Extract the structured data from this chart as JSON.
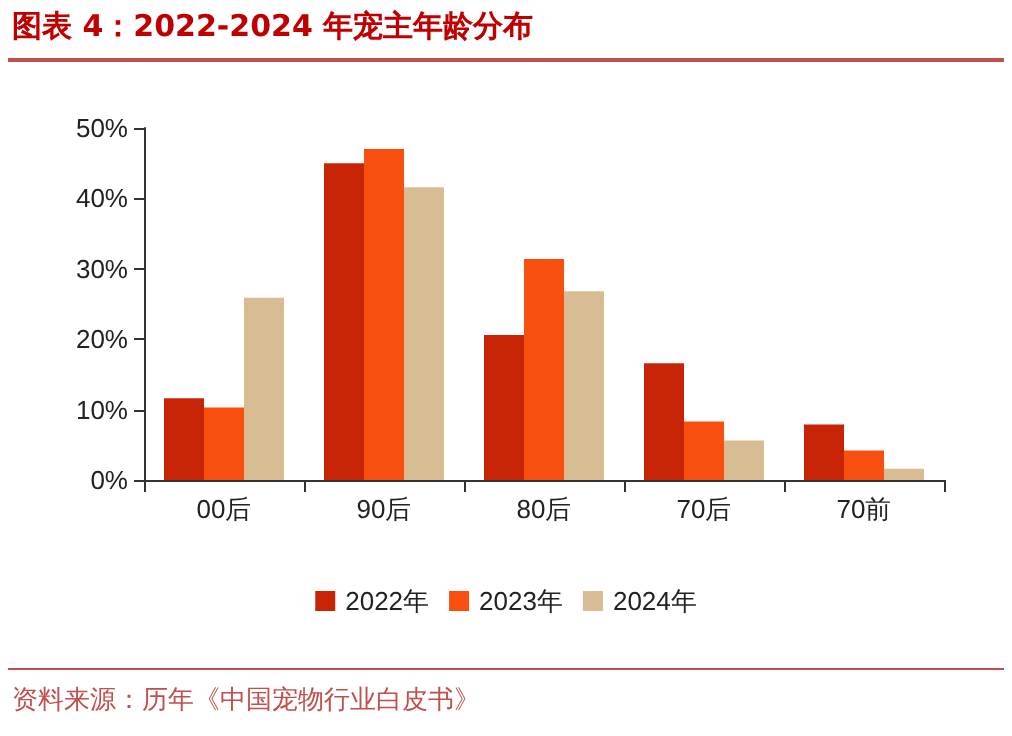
{
  "chart_data": {
    "type": "bar",
    "title": "图表 4：2022-2024 年宠主年龄分布",
    "annotations": [
      "资料来源：历年《中国宠物行业白皮书》"
    ],
    "categories": [
      "00后",
      "90后",
      "80后",
      "70后",
      "70前"
    ],
    "series": [
      {
        "name": "2022年",
        "color": "#c82506",
        "values": [
          11.6,
          45.0,
          20.6,
          16.6,
          7.9
        ]
      },
      {
        "name": "2023年",
        "color": "#fa500f",
        "values": [
          10.3,
          47.0,
          31.4,
          8.3,
          4.2
        ]
      },
      {
        "name": "2024年",
        "color": "#d8bd94",
        "values": [
          25.9,
          41.6,
          26.8,
          5.6,
          1.6
        ]
      }
    ],
    "ylim": [
      0,
      50
    ],
    "yticks": [
      {
        "value": 0,
        "label": "0%"
      },
      {
        "value": 10,
        "label": "10%"
      },
      {
        "value": 20,
        "label": "20%"
      },
      {
        "value": 30,
        "label": "30%"
      },
      {
        "value": 40,
        "label": "40%"
      },
      {
        "value": 50,
        "label": "50%"
      }
    ],
    "grid": false,
    "legend": "bottom"
  }
}
